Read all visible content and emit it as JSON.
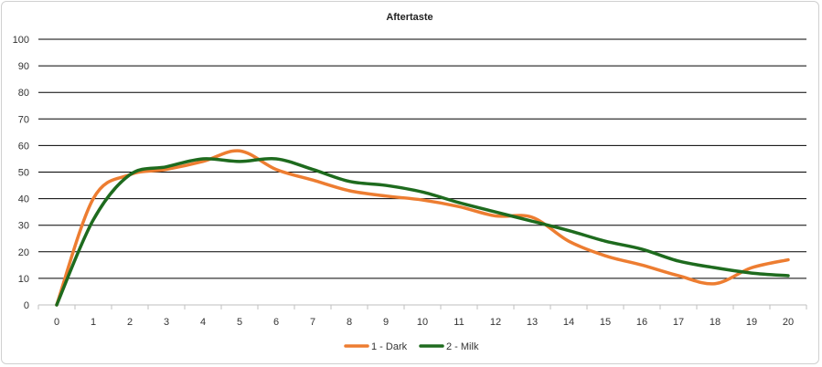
{
  "chart_data": {
    "type": "line",
    "title": "Aftertaste",
    "xlabel": "",
    "ylabel": "",
    "x": [
      0,
      1,
      2,
      3,
      4,
      5,
      6,
      7,
      8,
      9,
      10,
      11,
      12,
      13,
      14,
      15,
      16,
      17,
      18,
      19,
      20
    ],
    "xlim": [
      0,
      20
    ],
    "ylim": [
      0,
      100
    ],
    "yticks": [
      0,
      10,
      20,
      30,
      40,
      50,
      60,
      70,
      80,
      90,
      100
    ],
    "grid": "horizontal",
    "legend_position": "bottom",
    "series": [
      {
        "name": "1 - Dark",
        "color": "#ED7D31",
        "values": [
          0,
          40,
          49,
          51,
          54,
          58,
          51,
          47,
          43,
          41,
          39.5,
          37,
          33.5,
          33,
          24,
          18.5,
          15,
          11,
          8,
          14,
          17
        ]
      },
      {
        "name": "2 - Milk",
        "color": "#1E6B1E",
        "values": [
          0,
          32,
          49,
          52,
          55,
          54,
          55,
          51,
          46.5,
          45,
          42.5,
          38.5,
          35,
          31.5,
          28,
          24,
          21,
          16.5,
          14,
          12,
          11
        ]
      }
    ]
  }
}
